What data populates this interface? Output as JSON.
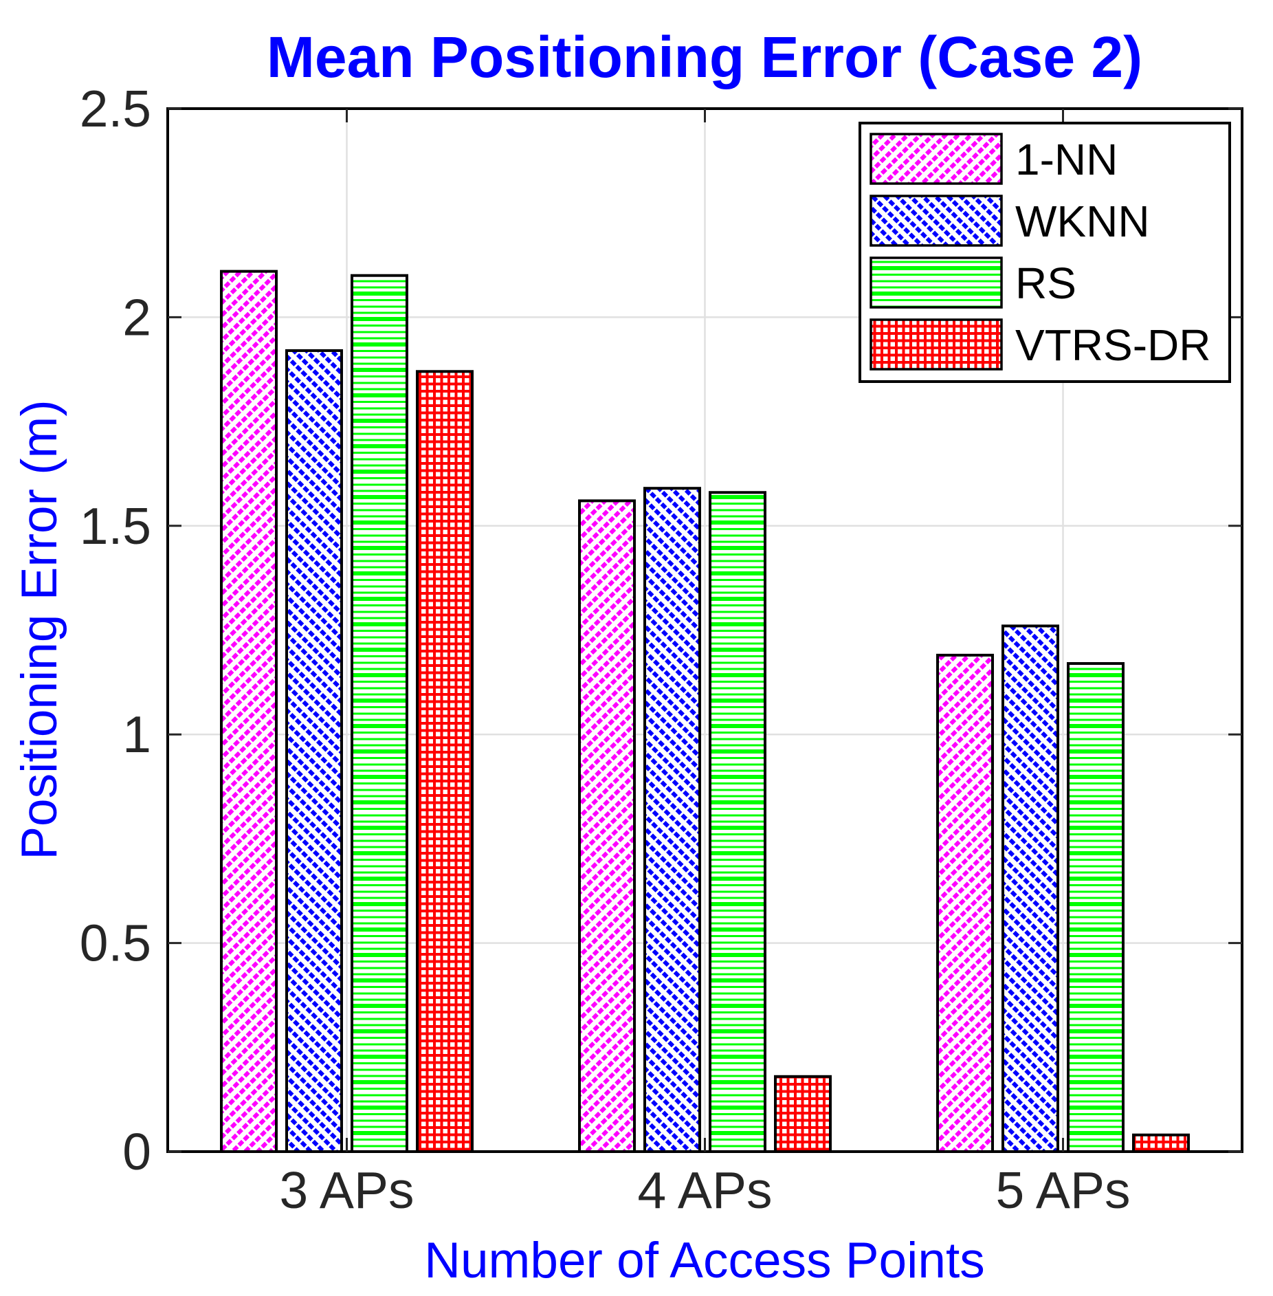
{
  "chart_data": {
    "type": "bar",
    "title": "Mean Positioning Error (Case 2)",
    "xlabel": "Number of Access Points",
    "ylabel": "Positioning Error (m)",
    "categories": [
      "3 APs",
      "4 APs",
      "5 APs"
    ],
    "series": [
      {
        "name": "1-NN",
        "color": "#FF00FF",
        "hatch": "diag-forward",
        "values": [
          2.11,
          1.56,
          1.19
        ]
      },
      {
        "name": "WKNN",
        "color": "#0000FF",
        "hatch": "diag-back",
        "values": [
          1.92,
          1.59,
          1.26
        ]
      },
      {
        "name": "RS",
        "color": "#00FF00",
        "hatch": "horizontal",
        "values": [
          2.1,
          1.58,
          1.17
        ]
      },
      {
        "name": "VTRS-DR",
        "color": "#FF0000",
        "hatch": "grid",
        "values": [
          1.87,
          0.18,
          0.04
        ]
      }
    ],
    "ylim": [
      0,
      2.5
    ],
    "yticks": [
      0,
      0.5,
      1,
      1.5,
      2,
      2.5
    ],
    "ytick_labels": [
      "0",
      "0.5",
      "1",
      "1.5",
      "2",
      "2.5"
    ],
    "grid": true,
    "legend_position": "top-right"
  },
  "style": {
    "title_color": "#0000FF",
    "axis_label_color": "#0000FF",
    "tick_label_color": "#262626",
    "axis_color": "#000000",
    "grid_color": "#E0E0E0",
    "legend_border_color": "#000000",
    "legend_background": "#FFFFFF",
    "legend_text_color": "#000000",
    "bar_edge_color": "#000000",
    "background": "#FFFFFF"
  }
}
